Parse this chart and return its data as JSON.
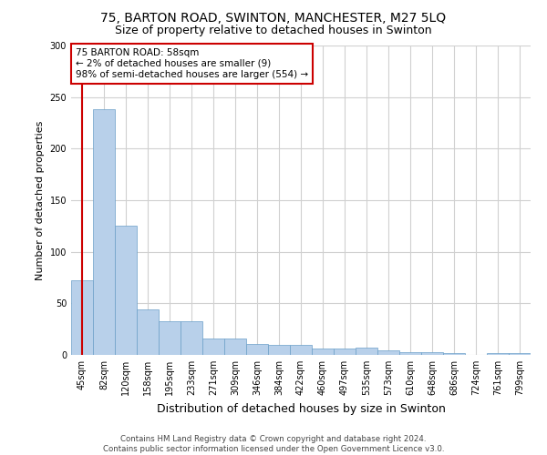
{
  "title_line1": "75, BARTON ROAD, SWINTON, MANCHESTER, M27 5LQ",
  "title_line2": "Size of property relative to detached houses in Swinton",
  "xlabel": "Distribution of detached houses by size in Swinton",
  "ylabel": "Number of detached properties",
  "categories": [
    "45sqm",
    "82sqm",
    "120sqm",
    "158sqm",
    "195sqm",
    "233sqm",
    "271sqm",
    "309sqm",
    "346sqm",
    "384sqm",
    "422sqm",
    "460sqm",
    "497sqm",
    "535sqm",
    "573sqm",
    "610sqm",
    "648sqm",
    "686sqm",
    "724sqm",
    "761sqm",
    "799sqm"
  ],
  "values": [
    72,
    238,
    125,
    44,
    33,
    33,
    16,
    16,
    11,
    10,
    10,
    6,
    6,
    7,
    4,
    3,
    3,
    2,
    0,
    2,
    2
  ],
  "bar_color": "#b8d0ea",
  "bar_edge_color": "#6a9fc8",
  "annotation_line1": "75 BARTON ROAD: 58sqm",
  "annotation_line2": "← 2% of detached houses are smaller (9)",
  "annotation_line3": "98% of semi-detached houses are larger (554) →",
  "annotation_box_color": "#ffffff",
  "annotation_box_edge_color": "#cc0000",
  "property_line_color": "#cc0000",
  "property_line_x": 0.0,
  "ylim": [
    0,
    300
  ],
  "yticks": [
    0,
    50,
    100,
    150,
    200,
    250,
    300
  ],
  "footer_line1": "Contains HM Land Registry data © Crown copyright and database right 2024.",
  "footer_line2": "Contains public sector information licensed under the Open Government Licence v3.0.",
  "background_color": "#ffffff",
  "grid_color": "#d0d0d0",
  "title1_fontsize": 10,
  "title2_fontsize": 9,
  "ylabel_fontsize": 8,
  "xlabel_fontsize": 9,
  "tick_fontsize": 7,
  "annot_fontsize": 7.5,
  "footer_fontsize": 6.2
}
